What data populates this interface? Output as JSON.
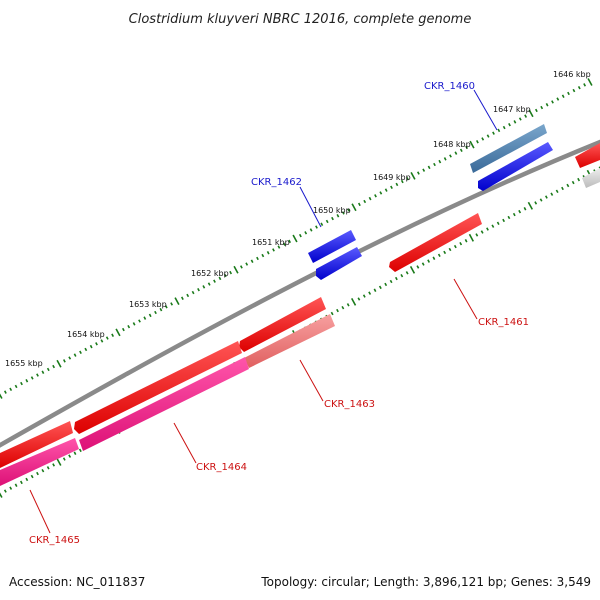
{
  "title": "Clostridium kluyveri NBRC 12016, complete genome",
  "footer": {
    "accession": "Accession: NC_011837",
    "summary": "Topology: circular; Length: 3,896,121 bp; Genes: 3,549"
  },
  "colors": {
    "backbone": "#8a8a8a",
    "tick": "#1a7a1a",
    "forward_label": "#1a1acc",
    "reverse_label": "#cc1111"
  },
  "kbp_markers": [
    "1646 kbp",
    "1647 kbp",
    "1648 kbp",
    "1649 kbp",
    "1650 kbp",
    "1651 kbp",
    "1652 kbp",
    "1653 kbp",
    "1654 kbp",
    "1655 kbp"
  ],
  "genes": [
    {
      "name": "CKR_1460",
      "color": "#1a1aee",
      "strand": "forward"
    },
    {
      "name": "CKR_1461",
      "color": "#ee1111",
      "strand": "reverse"
    },
    {
      "name": "CKR_1462",
      "color": "#1a1aee",
      "strand": "forward"
    },
    {
      "name": "CKR_1463",
      "color": "#ee1111",
      "strand": "reverse"
    },
    {
      "name": "CKR_1464",
      "color": "#ee1177",
      "strand": "reverse"
    },
    {
      "name": "CKR_1465",
      "color": "#ee1111",
      "strand": "reverse"
    }
  ]
}
